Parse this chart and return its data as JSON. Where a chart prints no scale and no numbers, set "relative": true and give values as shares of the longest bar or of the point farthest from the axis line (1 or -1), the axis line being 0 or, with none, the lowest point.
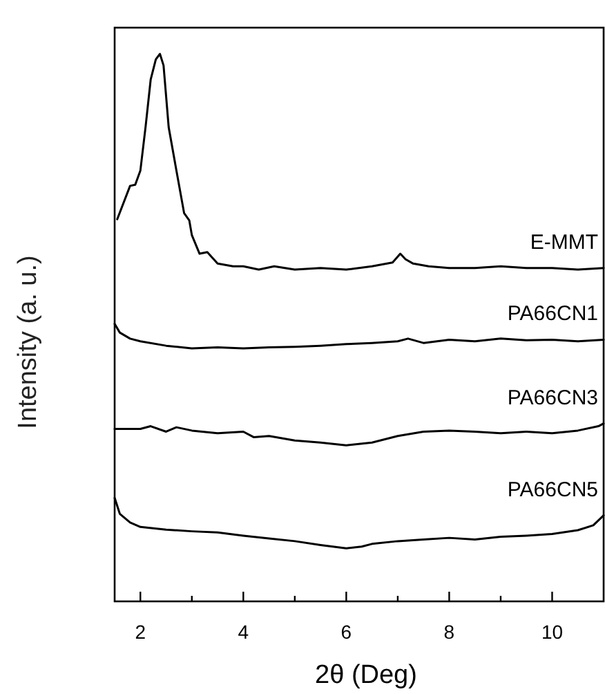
{
  "chart_data": {
    "type": "line",
    "xlabel": "2θ (Deg)",
    "ylabel": "Intensity (a. u.)",
    "relative": true,
    "tick_labels": "x",
    "xlim": [
      1.5,
      11
    ],
    "xticks": [
      2,
      {
        "value": 3,
        "label": null
      },
      4,
      {
        "value": 5,
        "label": null
      },
      6,
      {
        "value": 7,
        "label": null
      },
      8,
      {
        "value": 9,
        "label": null
      },
      10
    ],
    "series": [
      {
        "name": "E-MMT",
        "color": "#000000",
        "x": [
          1.55,
          1.8,
          1.9,
          2.0,
          2.1,
          2.2,
          2.3,
          2.38,
          2.45,
          2.55,
          2.7,
          2.85,
          2.95,
          3.0,
          3.15,
          3.3,
          3.5,
          3.8,
          4.0,
          4.3,
          4.6,
          5,
          5.5,
          6,
          6.5,
          6.9,
          7.05,
          7.15,
          7.3,
          7.6,
          8,
          8.5,
          9,
          9.5,
          10,
          10.5,
          11
        ],
        "values": [
          0.698,
          0.759,
          0.761,
          0.787,
          0.866,
          0.953,
          0.99,
          1,
          0.979,
          0.866,
          0.787,
          0.709,
          0.696,
          0.669,
          0.635,
          0.638,
          0.617,
          0.612,
          0.612,
          0.606,
          0.612,
          0.606,
          0.609,
          0.606,
          0.612,
          0.619,
          0.635,
          0.625,
          0.617,
          0.612,
          0.609,
          0.609,
          0.612,
          0.609,
          0.609,
          0.606,
          0.609
        ]
      },
      {
        "name": "PA66CN1",
        "color": "#000000",
        "x": [
          1.5,
          1.6,
          1.8,
          2.0,
          2.5,
          3,
          3.5,
          4,
          4.5,
          5,
          5.5,
          6,
          6.5,
          7,
          7.2,
          7.5,
          8,
          8.5,
          9,
          9.5,
          10,
          10.5,
          11
        ],
        "values": [
          0.507,
          0.491,
          0.48,
          0.475,
          0.467,
          0.462,
          0.464,
          0.462,
          0.464,
          0.465,
          0.467,
          0.47,
          0.472,
          0.475,
          0.48,
          0.472,
          0.478,
          0.475,
          0.48,
          0.477,
          0.478,
          0.475,
          0.478
        ]
      },
      {
        "name": "PA66CN3",
        "color": "#000000",
        "x": [
          1.5,
          2,
          2.2,
          2.5,
          2.7,
          3,
          3.5,
          4,
          4.2,
          4.5,
          5,
          5.5,
          6,
          6.5,
          7,
          7.5,
          8,
          8.5,
          9,
          9.5,
          10,
          10.5,
          10.9,
          11
        ],
        "values": [
          0.315,
          0.315,
          0.32,
          0.31,
          0.318,
          0.312,
          0.307,
          0.31,
          0.3,
          0.302,
          0.294,
          0.29,
          0.285,
          0.29,
          0.302,
          0.31,
          0.312,
          0.31,
          0.307,
          0.31,
          0.307,
          0.312,
          0.32,
          0.325
        ]
      },
      {
        "name": "PA66CN5",
        "color": "#000000",
        "x": [
          1.5,
          1.6,
          1.8,
          2,
          2.5,
          3,
          3.5,
          4,
          4.5,
          5,
          5.5,
          6,
          6.3,
          6.5,
          7,
          7.5,
          8,
          8.5,
          9,
          9.5,
          10,
          10.5,
          10.8,
          11
        ],
        "values": [
          0.189,
          0.16,
          0.144,
          0.136,
          0.131,
          0.128,
          0.126,
          0.12,
          0.115,
          0.11,
          0.103,
          0.097,
          0.1,
          0.105,
          0.11,
          0.113,
          0.116,
          0.113,
          0.118,
          0.12,
          0.123,
          0.13,
          0.139,
          0.157
        ]
      }
    ],
    "line_style": "solid"
  }
}
